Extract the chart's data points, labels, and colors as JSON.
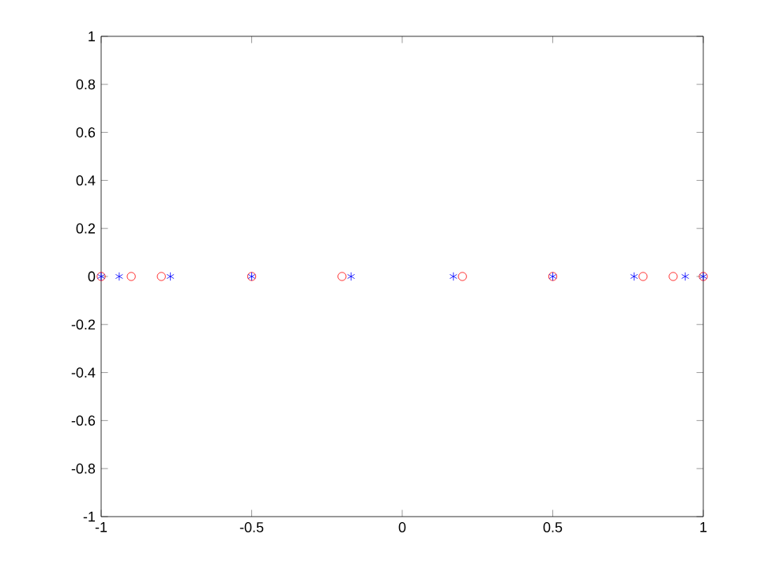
{
  "chart_data": {
    "type": "scatter",
    "xlim": [
      -1,
      1
    ],
    "ylim": [
      -1,
      1
    ],
    "xticks": [
      -1,
      -0.5,
      0,
      0.5,
      1
    ],
    "yticks": [
      -1,
      -0.8,
      -0.6,
      -0.4,
      -0.2,
      0,
      0.2,
      0.4,
      0.6,
      0.8,
      1
    ],
    "grid": false,
    "series": [
      {
        "color": "#ff0000",
        "marker": "circle",
        "x": [
          -1,
          -0.9,
          -0.8,
          -0.5,
          -0.2,
          0.2,
          0.5,
          0.8,
          0.9,
          1
        ],
        "values": [
          0,
          0,
          0,
          0,
          0,
          0,
          0,
          0,
          0,
          0
        ]
      },
      {
        "color": "#0000ff",
        "marker": "cross",
        "x": [
          -1,
          -0.94,
          -0.77,
          -0.5,
          -0.17,
          0.17,
          0.5,
          0.77,
          0.94,
          1
        ],
        "values": [
          0,
          0,
          0,
          0,
          0,
          0,
          0,
          0,
          0,
          0
        ]
      }
    ]
  }
}
